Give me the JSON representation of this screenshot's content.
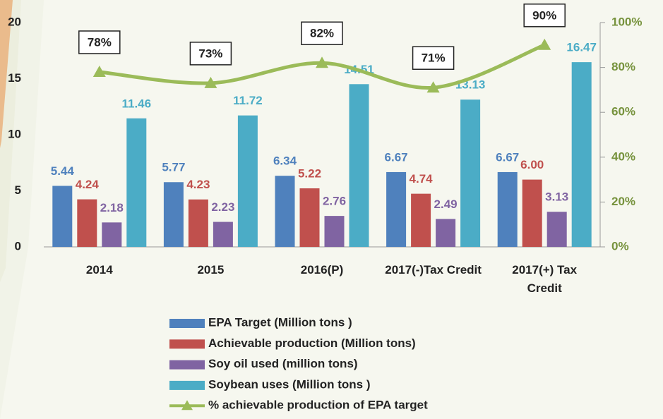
{
  "chart_data": {
    "type": "bar",
    "categories": [
      "2014",
      "2015",
      "2016(P)",
      "2017(-)Tax Credit",
      "2017(+) Tax Credit"
    ],
    "series": [
      {
        "name": "EPA Target (Million tons )",
        "color": "#4f81bd",
        "values": [
          5.44,
          5.77,
          6.34,
          6.67,
          6.67
        ],
        "value_labels": [
          "5.44",
          "5.77",
          "6.34",
          "6.67",
          "6.67"
        ]
      },
      {
        "name": "Achievable  production (Million tons)",
        "color": "#c0504d",
        "values": [
          4.24,
          4.23,
          5.22,
          4.74,
          6.0
        ],
        "value_labels": [
          "4.24",
          "4.23",
          "5.22",
          "4.74",
          "6.00"
        ]
      },
      {
        "name": "Soy oil used (million tons)",
        "color": "#8064a2",
        "values": [
          2.18,
          2.23,
          2.76,
          2.49,
          3.13
        ],
        "value_labels": [
          "2.18",
          "2.23",
          "2.76",
          "2.49",
          "3.13"
        ]
      },
      {
        "name": "Soybean uses (Million tons )",
        "color": "#4bacc6",
        "values": [
          11.46,
          11.72,
          14.51,
          13.13,
          16.47
        ],
        "value_labels": [
          "11.46",
          "11.72",
          "14.51",
          "13.13",
          "16.47"
        ]
      },
      {
        "name": "% achievable production of EPA target",
        "color": "#9bbb59",
        "type": "line",
        "axis": "y2",
        "values": [
          78,
          73,
          82,
          71,
          90
        ],
        "value_labels": [
          "78%",
          "73%",
          "82%",
          "71%",
          "90%"
        ]
      }
    ],
    "ylim": [
      0,
      20
    ],
    "yticks": [
      0,
      5,
      10,
      15,
      20
    ],
    "y2lim": [
      0,
      100
    ],
    "y2ticks": [
      {
        "value": 0,
        "label": "0%"
      },
      {
        "value": 20,
        "label": "20%"
      },
      {
        "value": 40,
        "label": "40%"
      },
      {
        "value": 60,
        "label": "60%"
      },
      {
        "value": 80,
        "label": "80%"
      },
      {
        "value": 100,
        "label": "100%"
      }
    ],
    "legend": "bottom"
  }
}
